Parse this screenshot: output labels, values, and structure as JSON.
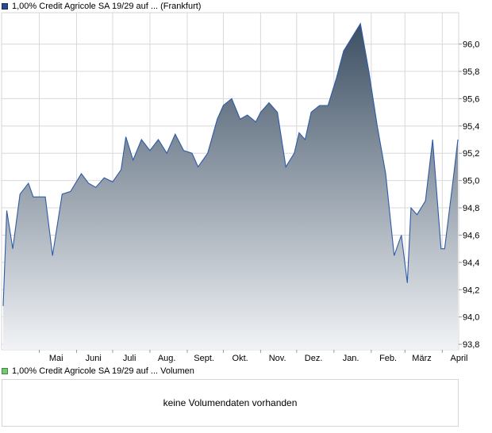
{
  "price_legend": "1,00% Credit Agricole SA 19/29 auf ... (Frankfurt)",
  "volume_legend": "1,00% Credit Agricole SA 19/29 auf ... Volumen",
  "volume_message": "keine Volumendaten vorhanden",
  "colors": {
    "line": "#2e5aa6",
    "fill_top": "#3c4f63",
    "fill_bottom": "#f1f3f6",
    "grid": "#d8d8d8"
  },
  "chart_data": {
    "type": "area",
    "x_tick_labels": [
      "Mai",
      "Juni",
      "Juli",
      "Aug.",
      "Sept.",
      "Okt.",
      "Nov.",
      "Dez.",
      "Jan.",
      "Feb.",
      "März",
      "April"
    ],
    "y_tick_labels": [
      "93,8",
      "94,0",
      "94,2",
      "94,4",
      "94,6",
      "94,8",
      "95,0",
      "95,2",
      "95,4",
      "95,6",
      "95,8",
      "96,0"
    ],
    "ylim": [
      93.76,
      96.23
    ],
    "y_axis_side": "right",
    "grid": true,
    "series": [
      {
        "x": [
          "2024-04-01",
          "2024-04-04",
          "2024-04-09",
          "2024-04-15",
          "2024-04-22",
          "2024-04-26",
          "2024-05-06",
          "2024-05-12",
          "2024-05-20",
          "2024-05-27",
          "2024-06-05",
          "2024-06-11",
          "2024-06-17",
          "2024-06-24",
          "2024-07-01",
          "2024-07-08",
          "2024-07-12",
          "2024-07-18",
          "2024-07-25",
          "2024-08-01",
          "2024-08-08",
          "2024-08-15",
          "2024-08-22",
          "2024-08-29",
          "2024-09-05",
          "2024-09-10",
          "2024-09-18",
          "2024-09-26",
          "2024-10-01",
          "2024-10-08",
          "2024-10-15",
          "2024-10-21",
          "2024-10-28",
          "2024-11-01",
          "2024-11-08",
          "2024-11-15",
          "2024-11-22",
          "2024-11-29",
          "2024-12-03",
          "2024-12-08",
          "2024-12-13",
          "2024-12-20",
          "2024-12-27",
          "2025-01-03",
          "2025-01-09",
          "2025-01-16",
          "2025-01-23",
          "2025-01-30",
          "2025-02-06",
          "2025-02-13",
          "2025-02-20",
          "2025-02-26",
          "2025-03-03",
          "2025-03-06",
          "2025-03-11",
          "2025-03-18",
          "2025-03-24",
          "2025-03-31",
          "2025-04-03",
          "2025-04-10",
          "2025-04-14"
        ],
        "values": [
          94.08,
          94.78,
          94.5,
          94.9,
          94.98,
          94.88,
          94.88,
          94.45,
          94.9,
          94.92,
          95.05,
          94.98,
          94.95,
          95.02,
          94.99,
          95.08,
          95.32,
          95.15,
          95.3,
          95.22,
          95.3,
          95.2,
          95.34,
          95.22,
          95.2,
          95.1,
          95.2,
          95.45,
          95.55,
          95.6,
          95.45,
          95.48,
          95.43,
          95.5,
          95.57,
          95.5,
          95.1,
          95.2,
          95.35,
          95.3,
          95.5,
          95.55,
          95.55,
          95.75,
          95.95,
          96.05,
          96.15,
          95.8,
          95.4,
          95.05,
          94.45,
          94.6,
          94.25,
          94.8,
          94.75,
          94.85,
          95.3,
          94.5,
          94.5,
          95.0,
          95.3
        ]
      }
    ]
  }
}
